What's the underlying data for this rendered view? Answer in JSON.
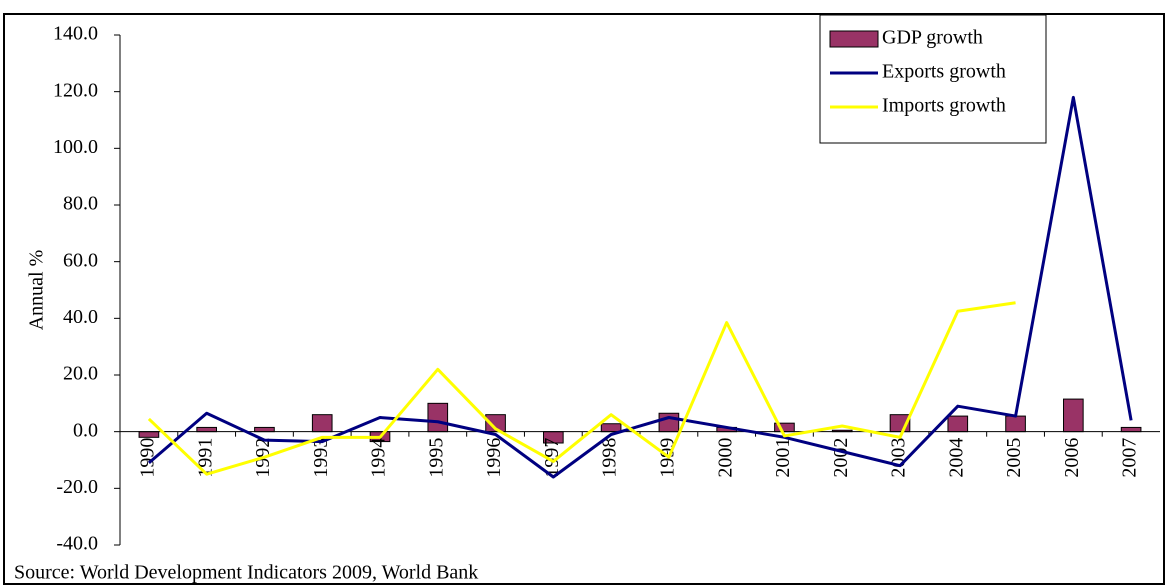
{
  "chart_data": {
    "type": "bar_line",
    "y_label": "Annual %",
    "source": "Source: World Development Indicators 2009, World Bank",
    "categories": [
      "1990",
      "1991",
      "1992",
      "1993",
      "1994",
      "1995",
      "1996",
      "1997",
      "1998",
      "1999",
      "2000",
      "2001",
      "2002",
      "2003",
      "2004",
      "2005",
      "2006",
      "2007"
    ],
    "series": [
      {
        "name": "GDP growth",
        "type": "bar",
        "color": "#993366",
        "values": [
          -2.0,
          1.5,
          1.5,
          6.0,
          -3.5,
          10.0,
          6.0,
          -4.0,
          2.8,
          6.5,
          1.5,
          3.0,
          0.5,
          6.0,
          5.5,
          5.5,
          11.5,
          1.5
        ]
      },
      {
        "name": "Exports growth",
        "type": "line",
        "color": "#000080",
        "values": [
          -11,
          6.5,
          -3,
          -3.5,
          5,
          3.5,
          -1,
          -16,
          -1,
          5,
          1.5,
          -2,
          -7,
          -12,
          9,
          5.5,
          118,
          4
        ]
      },
      {
        "name": "Imports growth",
        "type": "line",
        "color": "#ffff00",
        "values": [
          4.5,
          -15,
          -9,
          -2,
          -2,
          22,
          1,
          -10.5,
          6,
          -9,
          38.5,
          -1.5,
          2,
          -2,
          42.5,
          45.5,
          null,
          null
        ]
      }
    ],
    "ylim": [
      -40,
      140
    ],
    "yticks": [
      {
        "value": -40,
        "label": "-40.0"
      },
      {
        "value": -20,
        "label": "-20.0"
      },
      {
        "value": 0,
        "label": "0.0"
      },
      {
        "value": 20,
        "label": "20.0"
      },
      {
        "value": 40,
        "label": "40.0"
      },
      {
        "value": 60,
        "label": "60.0"
      },
      {
        "value": 80,
        "label": "80.0"
      },
      {
        "value": 100,
        "label": "100.0"
      },
      {
        "value": 120,
        "label": "120.0"
      },
      {
        "value": 140,
        "label": "140.0"
      }
    ],
    "legend": "upper right",
    "grid": false
  }
}
